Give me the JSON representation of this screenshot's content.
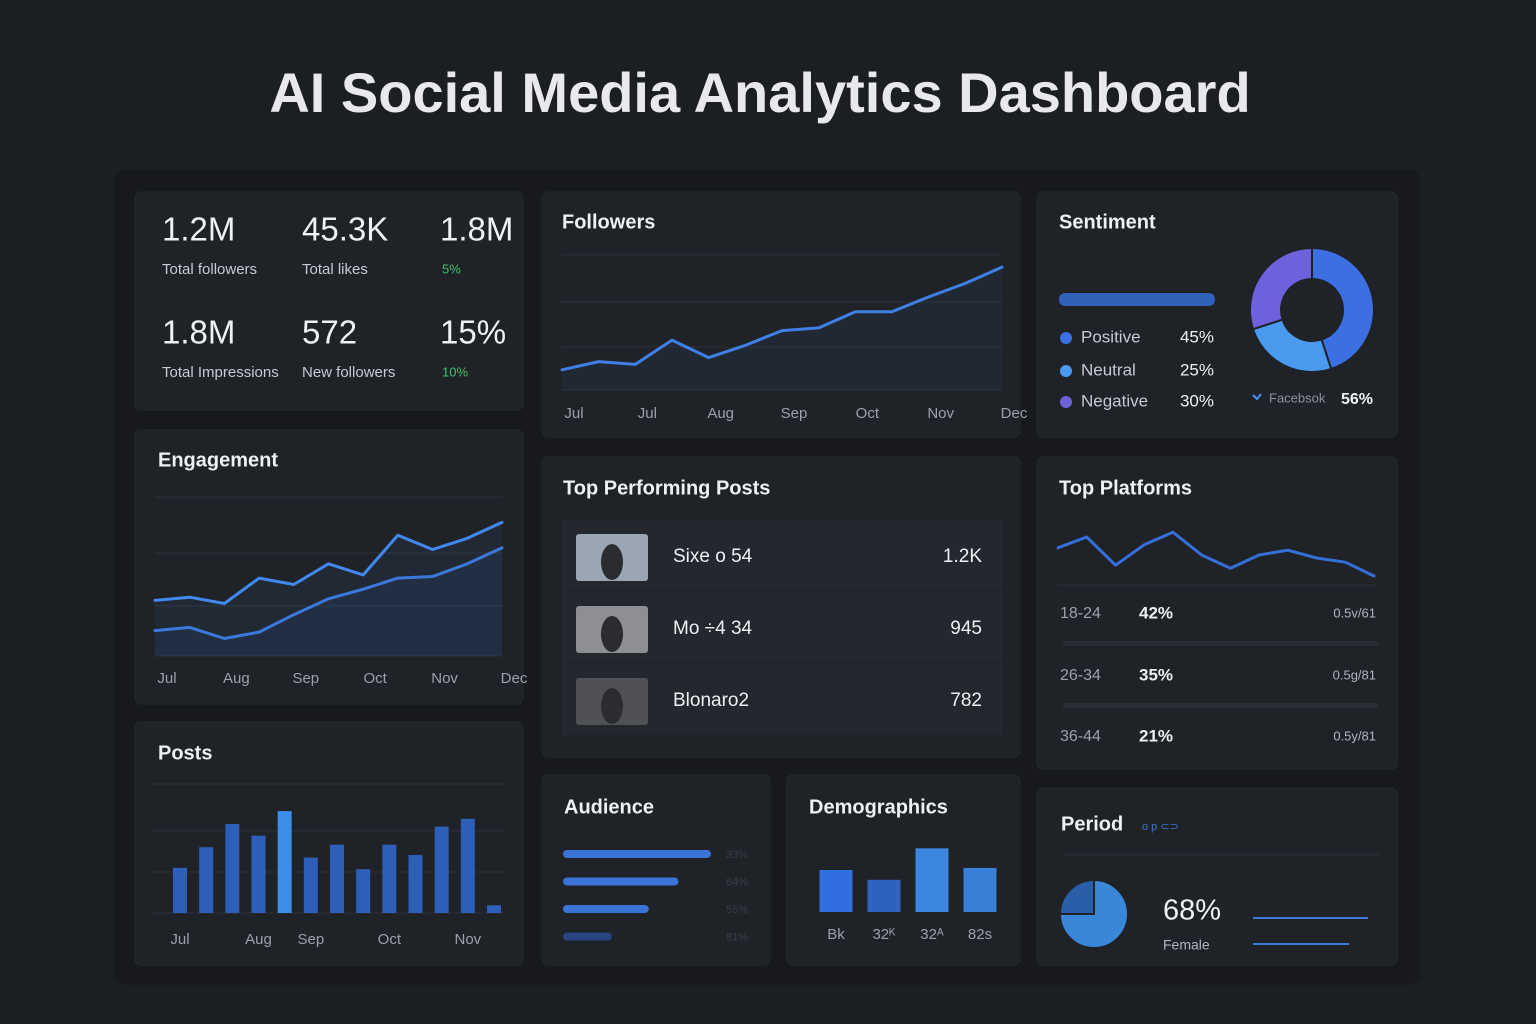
{
  "title": "AI Social Media Analytics Dashboard",
  "kpis": [
    {
      "value": "1.2M",
      "label": "Total followers"
    },
    {
      "value": "45.3K",
      "label": "Total likes"
    },
    {
      "value": "1.8M",
      "change": "5%"
    },
    {
      "value": "1.8M",
      "label": "Total Impressions"
    },
    {
      "value": "572",
      "label": "New followers"
    },
    {
      "value": "15%",
      "change": "10%"
    }
  ],
  "top_posts": {
    "title": "Top Performing Posts",
    "rows": [
      {
        "name": "Sixe o 54",
        "value": "1.2K"
      },
      {
        "name": "Mo ÷4 34",
        "value": "945"
      },
      {
        "name": "Blonaro2",
        "value": "782"
      }
    ]
  },
  "sentiment_platform": {
    "label": "Facebsok",
    "value": "56%"
  },
  "platform_rows": [
    {
      "age": "18-24",
      "share": "42%",
      "note": "0.5v/61"
    },
    {
      "age": "26-34",
      "share": "35%",
      "note": "0.5g/81"
    },
    {
      "age": "36-44",
      "share": "21%",
      "note": "0.5y/81"
    }
  ],
  "period_stat": {
    "tag": "o p ⊂⊃",
    "value": "68%",
    "label": "Female"
  },
  "chart_data": [
    {
      "type": "line",
      "title": "Followers",
      "color": "#3f7fe6",
      "categories": [
        "Jul",
        null,
        "Jul",
        null,
        "Aug",
        null,
        "Sep",
        null,
        "Oct",
        null,
        "Nov",
        null,
        "Dec"
      ],
      "values": [
        15,
        21,
        19,
        37,
        24,
        33,
        44,
        46,
        58,
        58,
        69,
        79,
        91
      ],
      "ylim": [
        0,
        100
      ]
    },
    {
      "type": "line",
      "title": "Engagement",
      "categories": [
        "Jul",
        null,
        "Aug",
        null,
        "Sep",
        null,
        "Oct",
        null,
        "Nov",
        null,
        "Dec"
      ],
      "series": [
        {
          "color": "#4189f0",
          "values": [
            35,
            37,
            33,
            49,
            45,
            58,
            51,
            76,
            67,
            74,
            84
          ]
        },
        {
          "color": "#3a78dc",
          "values": [
            16,
            18,
            11,
            15,
            26,
            36,
            42,
            49,
            50,
            58,
            68
          ]
        }
      ],
      "ylim": [
        0,
        100
      ]
    },
    {
      "type": "bar",
      "title": "Posts",
      "categories": [
        "Jul",
        null,
        null,
        "Aug",
        null,
        "Sep",
        null,
        null,
        "Oct",
        null,
        null,
        "Nov",
        null
      ],
      "values": [
        35,
        51,
        69,
        60,
        79,
        43,
        53,
        34,
        53,
        45,
        67,
        73,
        6
      ],
      "colors": [
        "#2d5fb8",
        "#2d5fb8",
        "#2d5fb8",
        "#2d5fb8",
        "#3d8ee8",
        "#2d5fb8",
        "#2d5fb8",
        "#2d5fb8",
        "#2d5fb8",
        "#2d5fb8",
        "#2d5fb8",
        "#2d5fb8",
        "#2d5fb8"
      ],
      "ylim": [
        0,
        100
      ]
    },
    {
      "type": "pie",
      "title": "Sentiment",
      "categories": [
        "Positive",
        "Neutral",
        "Negative"
      ],
      "values": [
        45,
        25,
        30
      ],
      "value_labels": [
        "45%",
        "25%",
        "30%"
      ],
      "colors": [
        "#3b6fe2",
        "#4a9af0",
        "#6e62dc"
      ]
    },
    {
      "type": "line",
      "title": "Top Platforms",
      "color": "#3470d8",
      "values": [
        62,
        80,
        33,
        67,
        88,
        50,
        28,
        50,
        58,
        45,
        38,
        15
      ],
      "ylim": [
        0,
        100
      ]
    },
    {
      "type": "hbar",
      "title": "Audience",
      "values": [
        100,
        78,
        58,
        33
      ],
      "labels": [
        "33%",
        "64%",
        "55%",
        "81%"
      ],
      "colors": [
        "#3b73d6",
        "#3b73d6",
        "#3b73d6",
        "#27467f"
      ],
      "xlim": [
        0,
        100
      ]
    },
    {
      "type": "bar",
      "title": "Demographics",
      "categories": [
        "Bk",
        "32ᴷ",
        "32ᴬ",
        "82s"
      ],
      "values": [
        60,
        46,
        91,
        63
      ],
      "colors": [
        "#2f6fe0",
        "#2d62c0",
        "#3a86e0",
        "#3a80d8"
      ],
      "ylim": [
        0,
        100
      ]
    },
    {
      "type": "pie",
      "title": "Period",
      "values": [
        75,
        25
      ],
      "colors": [
        "#3a86d8",
        "#2a5ea8"
      ]
    }
  ]
}
